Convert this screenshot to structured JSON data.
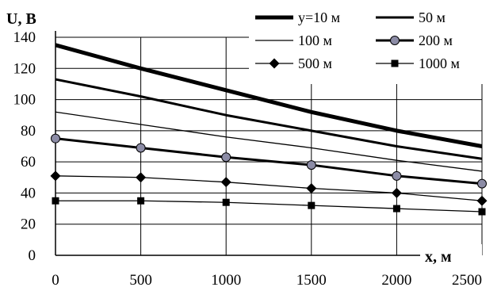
{
  "chart_data": {
    "type": "line",
    "ylabel": "U, В",
    "xlabel": "x, м",
    "xlim": [
      0,
      2500
    ],
    "ylim": [
      0,
      140
    ],
    "x_ticks": [
      0,
      500,
      1000,
      1500,
      2000,
      2500
    ],
    "y_ticks": [
      0,
      20,
      40,
      60,
      80,
      100,
      120,
      140
    ],
    "grid": true,
    "legend_position": "top-right",
    "x": [
      0,
      500,
      1000,
      1500,
      2000,
      2500
    ],
    "series": [
      {
        "name": "y=10 м",
        "values": [
          135,
          120,
          106,
          92,
          80,
          70
        ],
        "style": "thick",
        "marker": "none"
      },
      {
        "name": "50 м",
        "values": [
          113,
          102,
          90,
          80,
          70,
          62
        ],
        "style": "medium",
        "marker": "none"
      },
      {
        "name": "100 м",
        "values": [
          92,
          84,
          76,
          69,
          61,
          54
        ],
        "style": "thin",
        "marker": "none"
      },
      {
        "name": "200 м",
        "values": [
          75,
          69,
          63,
          58,
          51,
          46
        ],
        "style": "medium",
        "marker": "circle",
        "marker_color": "#8c8ca6"
      },
      {
        "name": "500 м",
        "values": [
          51,
          50,
          47,
          43,
          40,
          35
        ],
        "style": "thin",
        "marker": "diamond"
      },
      {
        "name": "1000 м",
        "values": [
          35,
          35,
          34,
          32,
          30,
          28
        ],
        "style": "thin",
        "marker": "square"
      }
    ]
  }
}
